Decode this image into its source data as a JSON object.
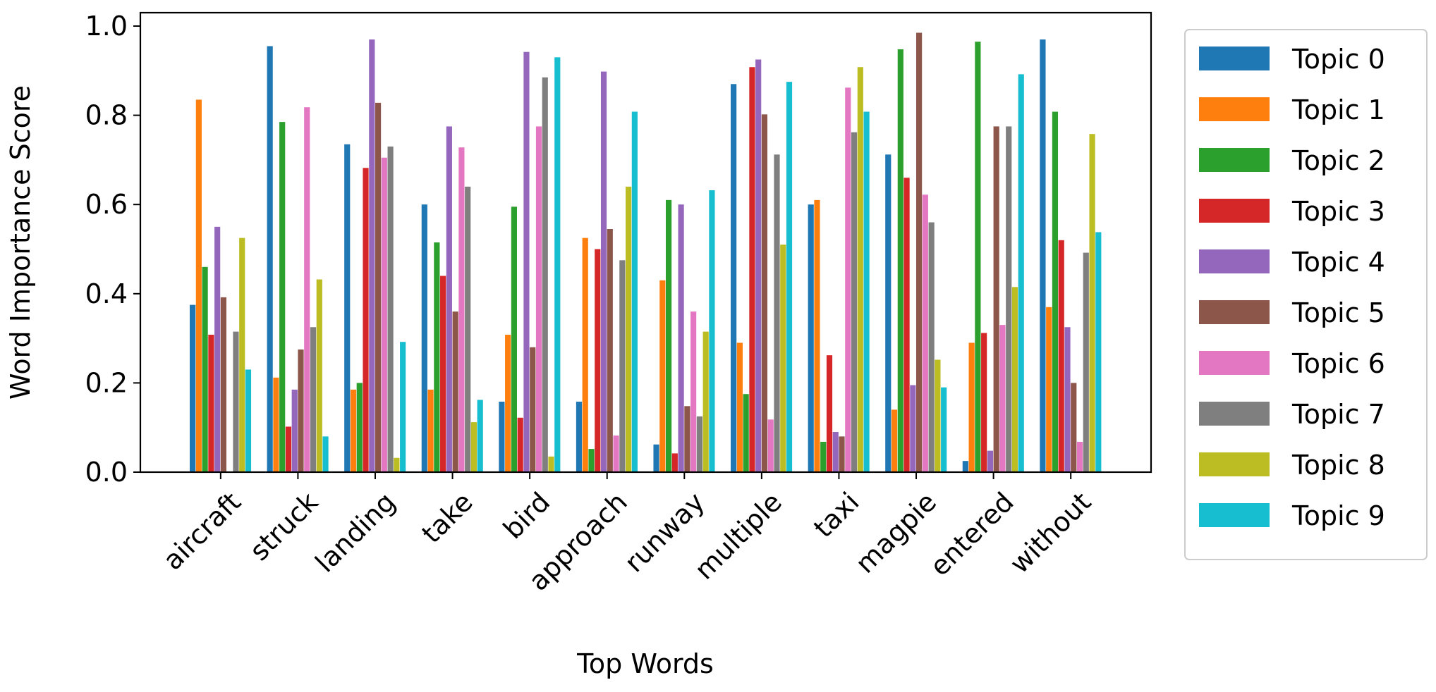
{
  "chart_data": {
    "type": "bar",
    "title": "",
    "xlabel": "Top Words",
    "ylabel": "Word Importance Score",
    "ylim": [
      0,
      1.03
    ],
    "yticks": [
      0.0,
      0.2,
      0.4,
      0.6,
      0.8,
      1.0
    ],
    "ytick_labels": [
      "0.0",
      "0.2",
      "0.4",
      "0.6",
      "0.8",
      "1.0"
    ],
    "grid": false,
    "legend_position": "outside-right",
    "categories": [
      "aircraft",
      "struck",
      "landing",
      "take",
      "bird",
      "approach",
      "runway",
      "multiple",
      "taxi",
      "magpie",
      "entered",
      "without"
    ],
    "series": [
      {
        "name": "Topic 0",
        "color": "#1f77b4",
        "values": [
          0.375,
          0.955,
          0.735,
          0.6,
          0.158,
          0.158,
          0.062,
          0.87,
          0.6,
          0.712,
          0.025,
          0.97
        ]
      },
      {
        "name": "Topic 1",
        "color": "#ff7f0e",
        "values": [
          0.835,
          0.212,
          0.185,
          0.185,
          0.308,
          0.525,
          0.43,
          0.29,
          0.61,
          0.14,
          0.29,
          0.37
        ]
      },
      {
        "name": "Topic 2",
        "color": "#2ca02c",
        "values": [
          0.46,
          0.785,
          0.2,
          0.515,
          0.595,
          0.052,
          0.61,
          0.175,
          0.068,
          0.948,
          0.965,
          0.808
        ]
      },
      {
        "name": "Topic 3",
        "color": "#d62728",
        "values": [
          0.308,
          0.102,
          0.682,
          0.44,
          0.122,
          0.5,
          0.042,
          0.908,
          0.262,
          0.66,
          0.312,
          0.52
        ]
      },
      {
        "name": "Topic 4",
        "color": "#9467bd",
        "values": [
          0.55,
          0.185,
          0.97,
          0.775,
          0.942,
          0.898,
          0.6,
          0.925,
          0.09,
          0.195,
          0.048,
          0.325
        ]
      },
      {
        "name": "Topic 5",
        "color": "#8c564b",
        "values": [
          0.392,
          0.275,
          0.828,
          0.36,
          0.28,
          0.545,
          0.148,
          0.802,
          0.08,
          0.985,
          0.775,
          0.2
        ]
      },
      {
        "name": "Topic 6",
        "color": "#e377c2",
        "values": [
          0.0,
          0.818,
          0.705,
          0.728,
          0.775,
          0.082,
          0.36,
          0.118,
          0.862,
          0.622,
          0.33,
          0.068
        ]
      },
      {
        "name": "Topic 7",
        "color": "#7f7f7f",
        "values": [
          0.315,
          0.325,
          0.73,
          0.64,
          0.885,
          0.475,
          0.125,
          0.712,
          0.762,
          0.56,
          0.775,
          0.492
        ]
      },
      {
        "name": "Topic 8",
        "color": "#bcbd22",
        "values": [
          0.525,
          0.432,
          0.032,
          0.112,
          0.035,
          0.64,
          0.315,
          0.51,
          0.908,
          0.252,
          0.415,
          0.758
        ]
      },
      {
        "name": "Topic 9",
        "color": "#17becf",
        "values": [
          0.23,
          0.08,
          0.292,
          0.162,
          0.93,
          0.808,
          0.632,
          0.875,
          0.808,
          0.19,
          0.892,
          0.538
        ]
      }
    ]
  }
}
